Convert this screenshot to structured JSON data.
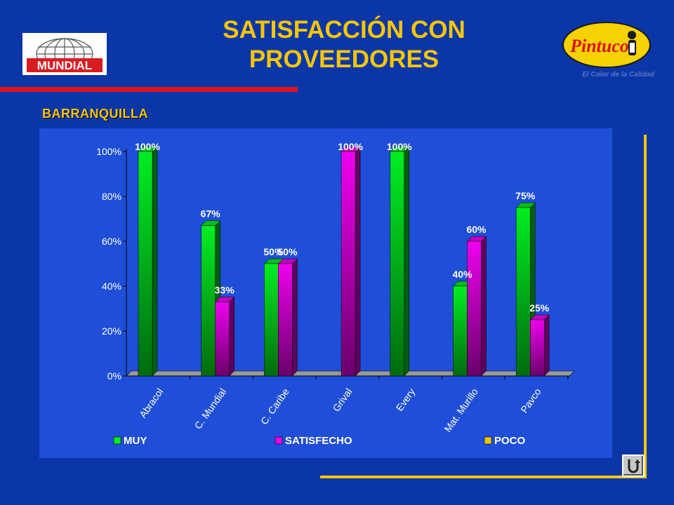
{
  "title_line1": "SATISFACCIÓN CON",
  "title_line2": "PROVEEDORES",
  "subtitle": "BARRANQUILLA",
  "logos": {
    "left": "MUNDIAL",
    "right": "Pintuco",
    "right_tagline": "El Color de la Calidad"
  },
  "colors": {
    "background": "#0a36a8",
    "panel": "#1f4fd8",
    "title": "#f7c600",
    "accent_red": "#e0141c",
    "muy": "#00ee22",
    "satisfecho": "#ee00ee",
    "poco": "#e8c800"
  },
  "chart_data": {
    "type": "bar",
    "categories": [
      "Abracol",
      "C. Mundial",
      "C. Caribe",
      "Grival",
      "Every",
      "Mat. Murillo",
      "Pavco"
    ],
    "series": [
      {
        "name": "MUY",
        "values": [
          100,
          67,
          50,
          0,
          100,
          40,
          75
        ],
        "labels": [
          "100%",
          "67%",
          "50%",
          "",
          "100%",
          "40%",
          "75%"
        ]
      },
      {
        "name": "SATISFECHO",
        "values": [
          0,
          33,
          50,
          100,
          0,
          60,
          25
        ],
        "labels": [
          "",
          "33%",
          "50%",
          "100%",
          "",
          "60%",
          "25%"
        ]
      },
      {
        "name": "POCO",
        "values": [
          0,
          0,
          0,
          0,
          0,
          0,
          0
        ],
        "labels": [
          "",
          "",
          "",
          "",
          "",
          "",
          ""
        ]
      }
    ],
    "yticks": [
      "0%",
      "20%",
      "40%",
      "60%",
      "80%",
      "100%"
    ],
    "ylim": [
      0,
      100
    ],
    "legend_position": "bottom",
    "grid": false,
    "bars_3d": true
  },
  "icons": {
    "return": "return-arrow-icon"
  }
}
